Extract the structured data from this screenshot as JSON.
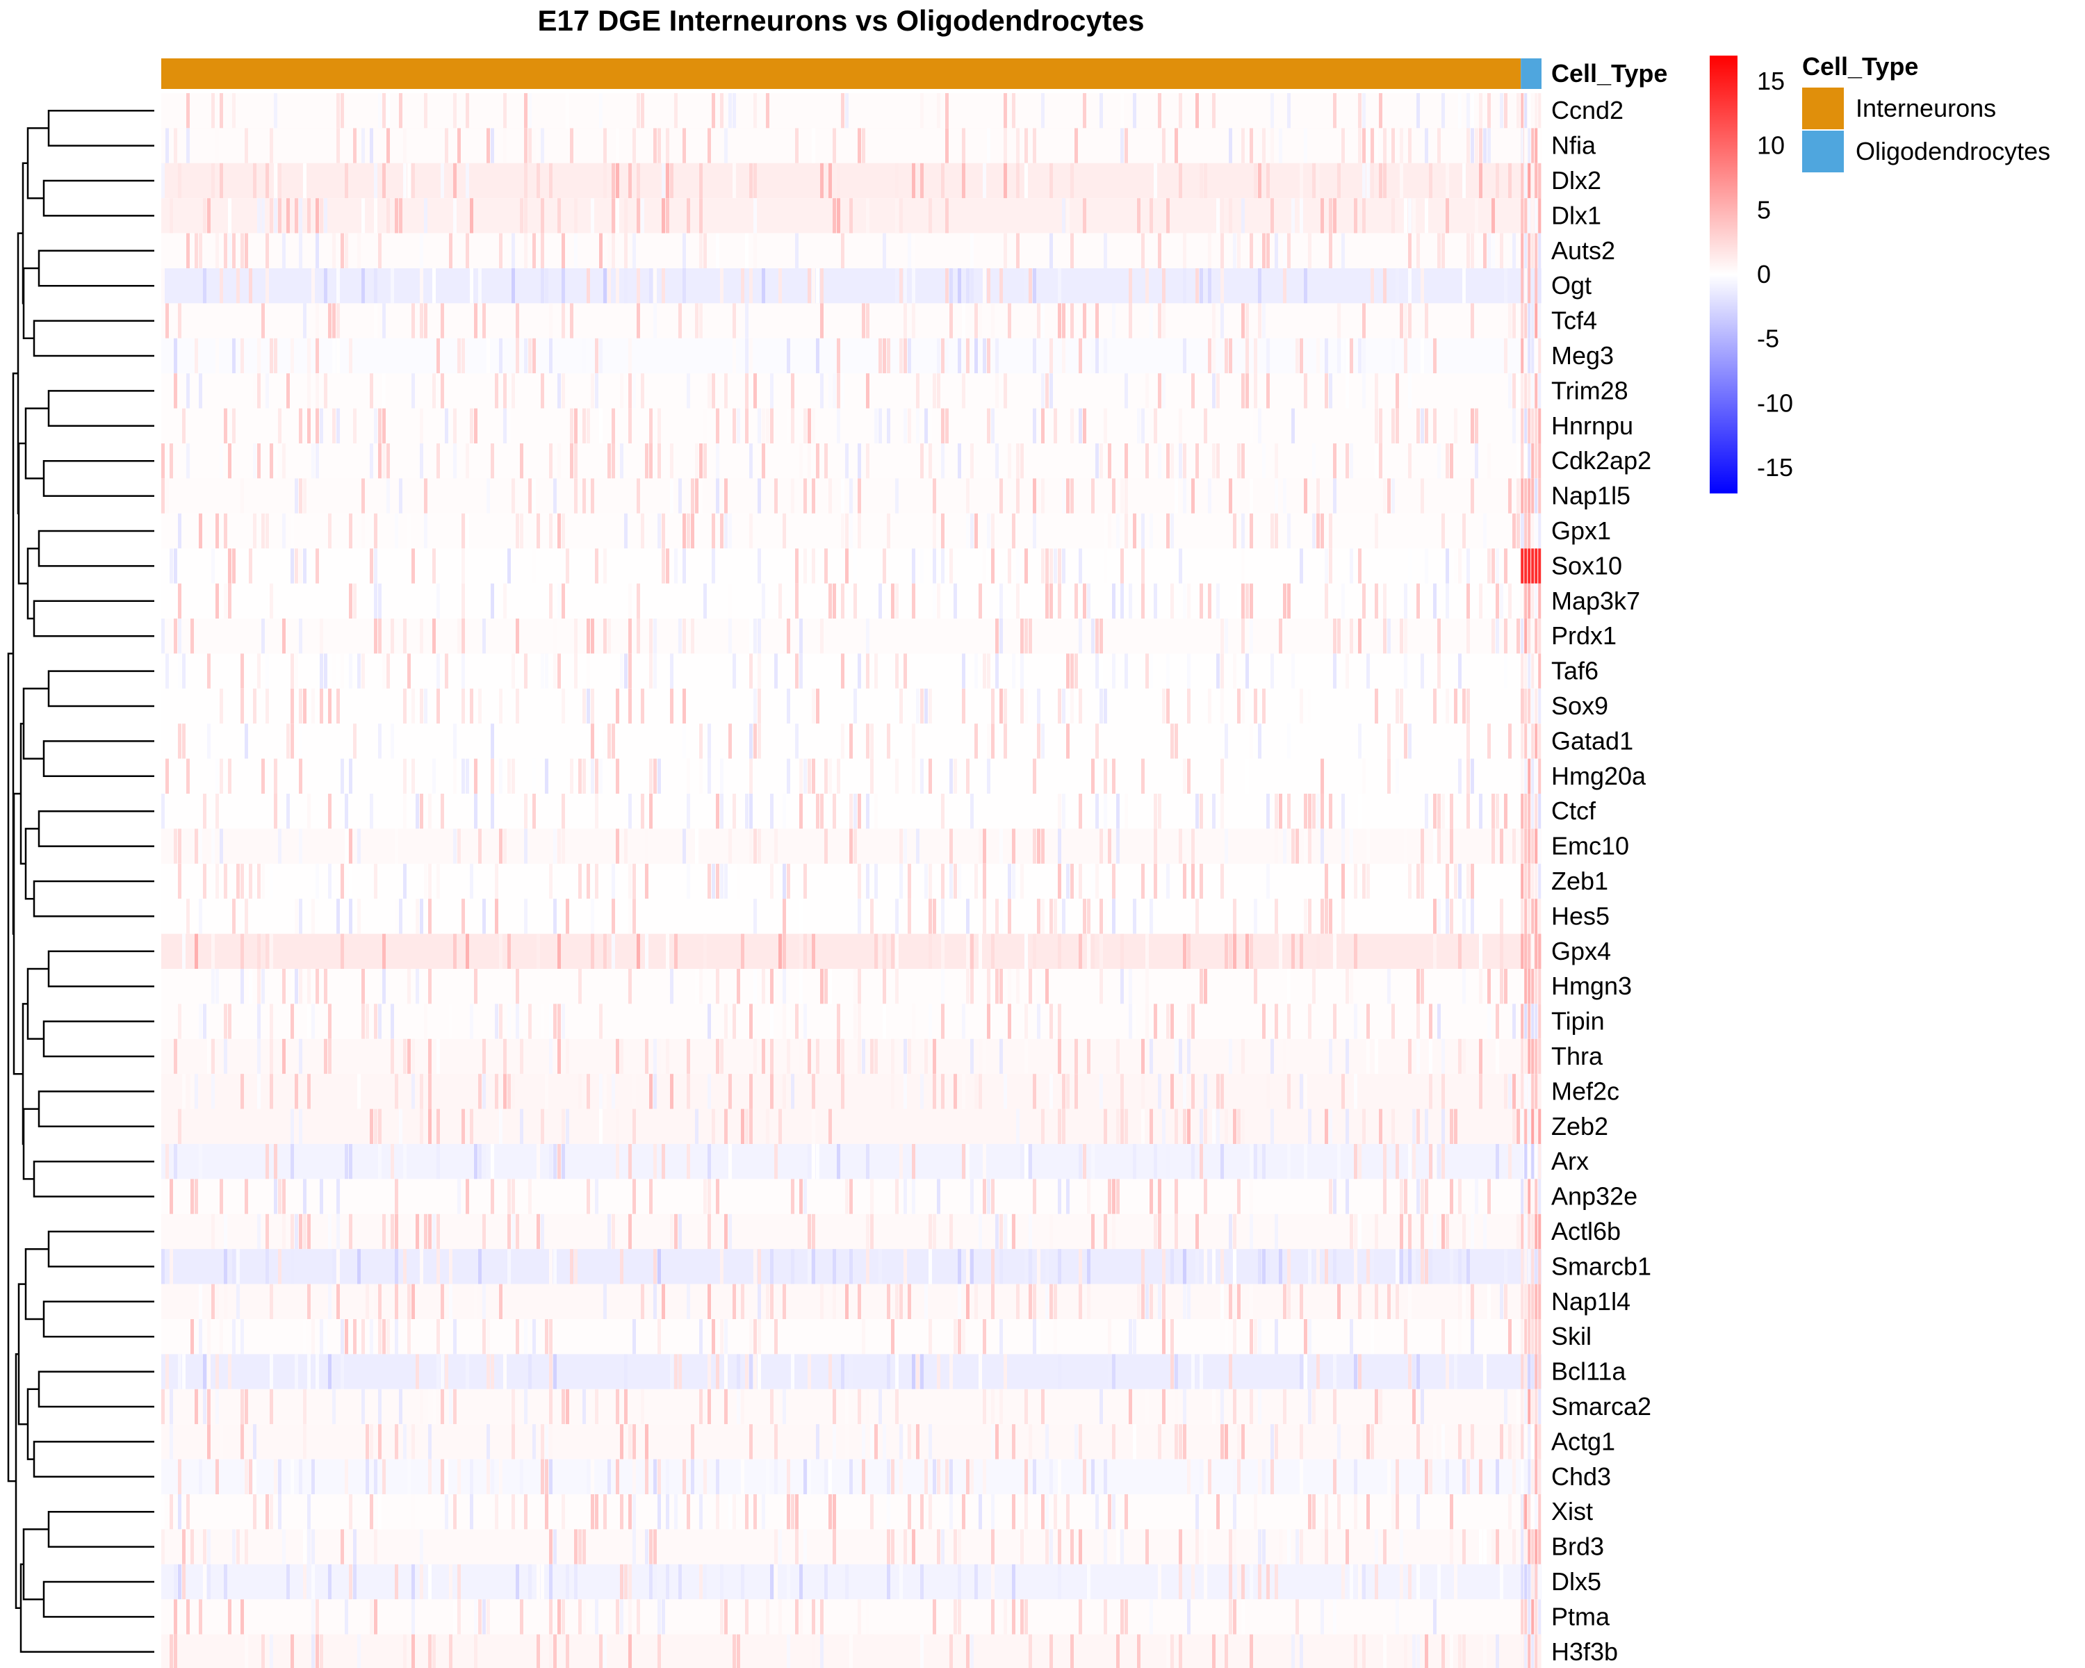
{
  "chart_data": {
    "type": "heatmap",
    "title": "E17 DGE Interneurons vs Oligodendrocytes",
    "annotation": {
      "name": "Cell_Type",
      "groups": [
        {
          "label": "Interneurons",
          "color": "#E08F0B",
          "fraction": 0.985
        },
        {
          "label": "Oligodendrocytes",
          "color": "#4FA6DE",
          "fraction": 0.015
        }
      ]
    },
    "rows": [
      "Ccnd2",
      "Nfia",
      "Dlx2",
      "Dlx1",
      "Auts2",
      "Ogt",
      "Tcf4",
      "Meg3",
      "Trim28",
      "Hnrnpu",
      "Cdk2ap2",
      "Nap1l5",
      "Gpx1",
      "Sox10",
      "Map3k7",
      "Prdx1",
      "Taf6",
      "Sox9",
      "Gatad1",
      "Hmg20a",
      "Ctcf",
      "Emc10",
      "Zeb1",
      "Hes5",
      "Gpx4",
      "Hmgn3",
      "Tipin",
      "Thra",
      "Mef2c",
      "Zeb2",
      "Arx",
      "Anp32e",
      "Actl6b",
      "Smarcb1",
      "Nap1l4",
      "Skil",
      "Bcl11a",
      "Smarca2",
      "Actg1",
      "Chd3",
      "Xist",
      "Brd3",
      "Dlx5",
      "Ptma",
      "H3f3b"
    ],
    "color_scale": {
      "min": -17,
      "max": 17,
      "ticks": [
        15,
        10,
        5,
        0,
        -5,
        -10,
        -15
      ],
      "low_color": "#0000FF",
      "mid_color": "#FFFFFF",
      "high_color": "#FF0000"
    },
    "row_baseline": [
      0.3,
      0.3,
      1.2,
      1.0,
      0.3,
      -1.2,
      0.3,
      -0.3,
      0.2,
      0.2,
      0.2,
      0.3,
      0.2,
      0.1,
      0.1,
      0.3,
      0.1,
      0.1,
      0.1,
      0.1,
      0.1,
      0.4,
      0.1,
      0.1,
      1.5,
      0.2,
      0.2,
      0.5,
      0.6,
      0.6,
      -0.8,
      0.2,
      0.4,
      -1.3,
      0.5,
      0.2,
      -1.2,
      0.4,
      0.5,
      -0.5,
      0.2,
      0.4,
      -0.8,
      0.3,
      0.6
    ],
    "legend_placement": "right"
  }
}
